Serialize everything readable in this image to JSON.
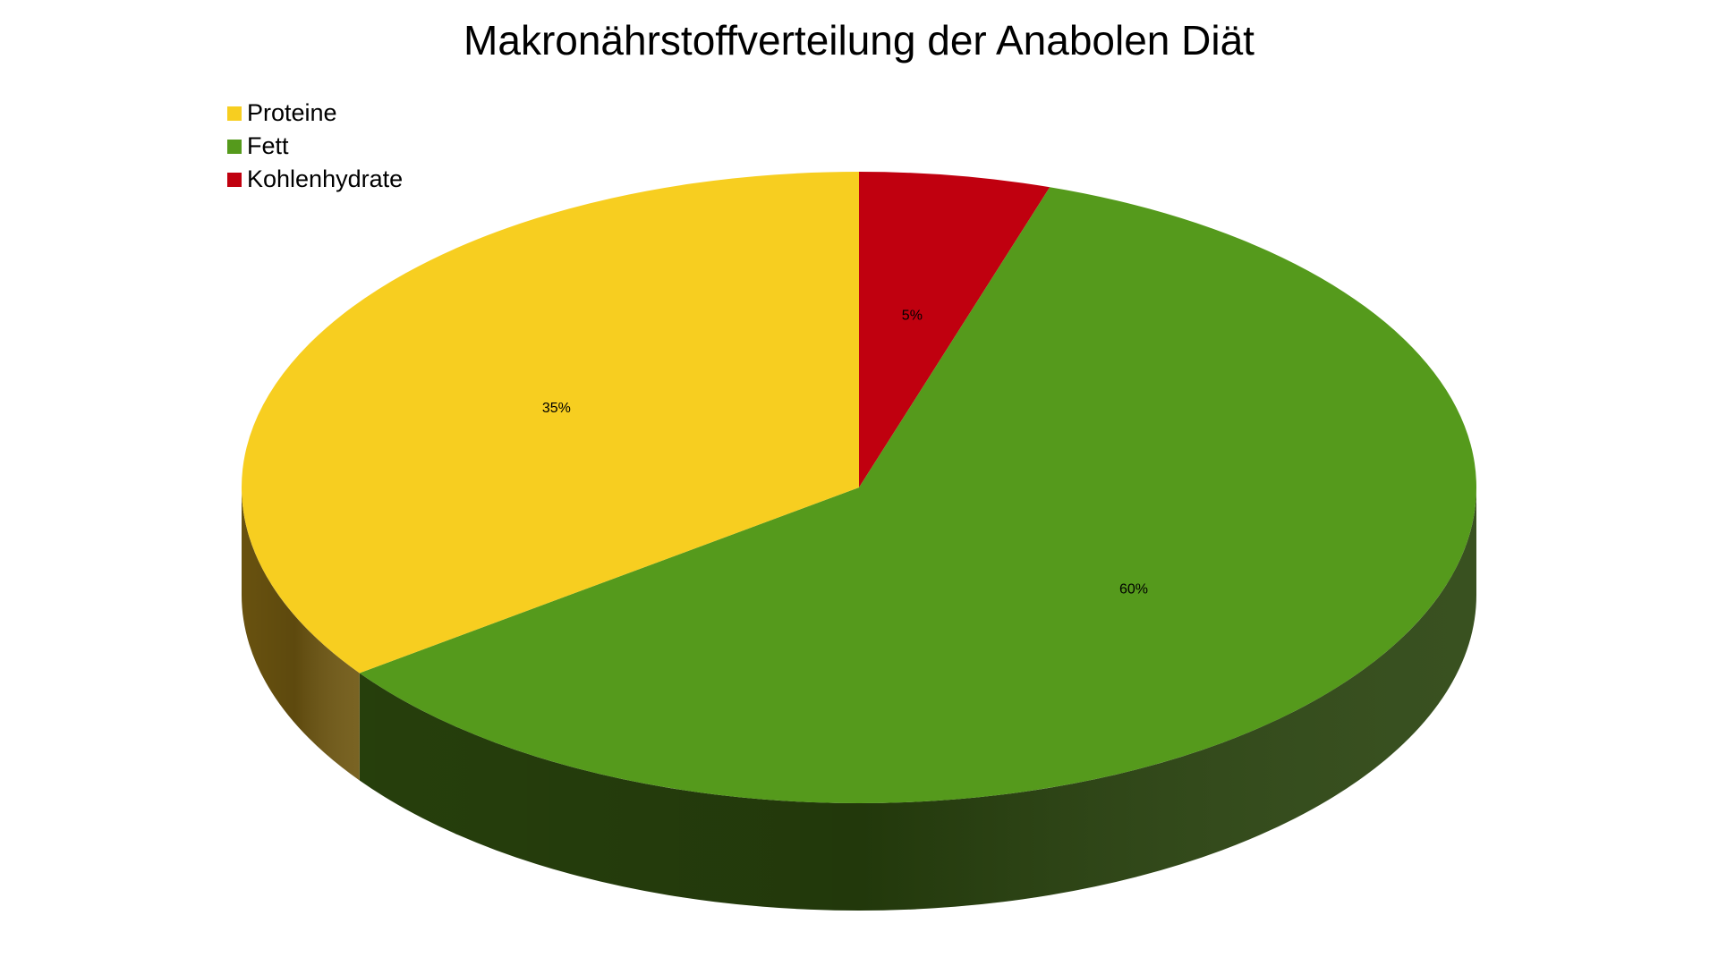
{
  "chart_data": {
    "type": "pie",
    "title": "Makronährstoffverteilung der Anabolen Diät",
    "categories": [
      "Proteine",
      "Fett",
      "Kohlenhydrate"
    ],
    "values": [
      35,
      60,
      5
    ],
    "labels": [
      "35%",
      "60%",
      "5%"
    ],
    "colors": [
      "#f7ce20",
      "#559a1c",
      "#c0000f"
    ],
    "side_colors": [
      "#6e5610",
      "#28420d",
      "#6a0009"
    ],
    "legend_placement": "top-left",
    "style": "3d"
  }
}
